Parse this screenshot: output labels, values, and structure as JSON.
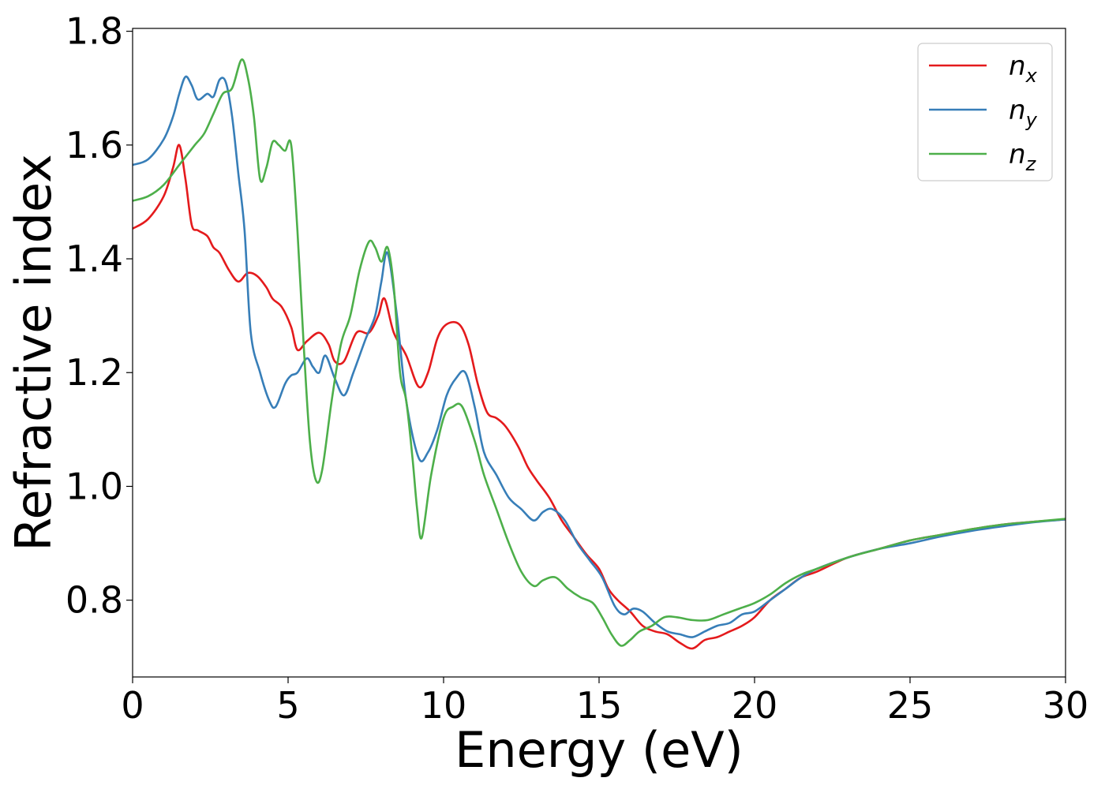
{
  "chart_data": {
    "type": "line",
    "xlabel": "Energy (eV)",
    "ylabel": "Refractive index",
    "xlim": [
      0,
      30
    ],
    "ylim": [
      0.665,
      1.805
    ],
    "xticks": [
      0,
      5,
      10,
      15,
      20,
      25,
      30
    ],
    "xtick_labels": [
      "0",
      "5",
      "10",
      "15",
      "20",
      "25",
      "30"
    ],
    "yticks": [
      0.8,
      1.0,
      1.2,
      1.4,
      1.6,
      1.8
    ],
    "ytick_labels": [
      "0.8",
      "1.0",
      "1.2",
      "1.4",
      "1.6",
      "1.8"
    ],
    "grid": false,
    "legend_position": "top-right",
    "series": [
      {
        "name": "n_x",
        "legend_base": "n",
        "legend_sub": "x",
        "color": "#e41a1c",
        "x": [
          0,
          0.5,
          1.0,
          1.3,
          1.5,
          1.7,
          1.9,
          2.1,
          2.4,
          2.6,
          2.8,
          3.1,
          3.4,
          3.7,
          4.0,
          4.3,
          4.5,
          4.8,
          5.1,
          5.3,
          5.6,
          6.0,
          6.3,
          6.5,
          6.8,
          7.2,
          7.6,
          7.9,
          8.1,
          8.4,
          8.8,
          9.2,
          9.5,
          9.8,
          10.1,
          10.5,
          10.8,
          11.1,
          11.4,
          11.7,
          12.0,
          12.4,
          12.7,
          13.0,
          13.4,
          13.8,
          14.2,
          14.6,
          15.0,
          15.3,
          15.6,
          16.0,
          16.4,
          16.8,
          17.2,
          17.6,
          18.0,
          18.4,
          18.8,
          19.2,
          19.6,
          20.0,
          20.5,
          21.0,
          21.5,
          22.0,
          23.0,
          24.0,
          25.0,
          26.0,
          27.0,
          28.0,
          29.0,
          30.0
        ],
        "y": [
          1.453,
          1.47,
          1.51,
          1.56,
          1.6,
          1.54,
          1.46,
          1.45,
          1.44,
          1.42,
          1.41,
          1.38,
          1.36,
          1.375,
          1.37,
          1.35,
          1.33,
          1.315,
          1.28,
          1.24,
          1.255,
          1.27,
          1.25,
          1.22,
          1.22,
          1.27,
          1.27,
          1.3,
          1.33,
          1.27,
          1.23,
          1.175,
          1.2,
          1.26,
          1.285,
          1.285,
          1.25,
          1.18,
          1.13,
          1.12,
          1.105,
          1.07,
          1.035,
          1.01,
          0.98,
          0.94,
          0.91,
          0.88,
          0.855,
          0.82,
          0.8,
          0.78,
          0.755,
          0.745,
          0.74,
          0.725,
          0.715,
          0.73,
          0.735,
          0.745,
          0.755,
          0.77,
          0.8,
          0.82,
          0.84,
          0.85,
          0.875,
          0.89,
          0.905,
          0.915,
          0.925,
          0.933,
          0.938,
          0.942
        ]
      },
      {
        "name": "n_y",
        "legend_base": "n",
        "legend_sub": "y",
        "color": "#377eb8",
        "x": [
          0,
          0.5,
          1.0,
          1.3,
          1.5,
          1.7,
          1.9,
          2.1,
          2.4,
          2.6,
          2.8,
          3.0,
          3.2,
          3.4,
          3.6,
          3.8,
          4.1,
          4.4,
          4.6,
          4.9,
          5.1,
          5.3,
          5.6,
          5.8,
          6.0,
          6.2,
          6.5,
          6.8,
          7.1,
          7.5,
          7.8,
          8.0,
          8.2,
          8.5,
          8.8,
          9.2,
          9.5,
          9.8,
          10.1,
          10.4,
          10.7,
          11.0,
          11.3,
          11.7,
          12.1,
          12.5,
          12.9,
          13.2,
          13.5,
          13.9,
          14.3,
          14.7,
          15.1,
          15.5,
          15.8,
          16.1,
          16.4,
          16.8,
          17.2,
          17.6,
          18.0,
          18.4,
          18.8,
          19.2,
          19.6,
          20.0,
          20.5,
          21.0,
          21.5,
          22.0,
          23.0,
          24.0,
          25.0,
          26.0,
          27.0,
          28.0,
          29.0,
          30.0
        ],
        "y": [
          1.565,
          1.575,
          1.61,
          1.65,
          1.69,
          1.72,
          1.705,
          1.68,
          1.69,
          1.685,
          1.715,
          1.71,
          1.65,
          1.55,
          1.45,
          1.27,
          1.2,
          1.15,
          1.14,
          1.18,
          1.195,
          1.2,
          1.225,
          1.21,
          1.2,
          1.23,
          1.19,
          1.16,
          1.2,
          1.26,
          1.3,
          1.36,
          1.41,
          1.3,
          1.15,
          1.05,
          1.06,
          1.1,
          1.16,
          1.19,
          1.2,
          1.14,
          1.06,
          1.02,
          0.98,
          0.96,
          0.94,
          0.955,
          0.96,
          0.94,
          0.9,
          0.87,
          0.84,
          0.79,
          0.775,
          0.785,
          0.78,
          0.76,
          0.745,
          0.74,
          0.735,
          0.745,
          0.755,
          0.76,
          0.775,
          0.78,
          0.8,
          0.82,
          0.84,
          0.855,
          0.875,
          0.89,
          0.9,
          0.912,
          0.922,
          0.93,
          0.937,
          0.942
        ]
      },
      {
        "name": "n_z",
        "legend_base": "n",
        "legend_sub": "z",
        "color": "#4daf4a",
        "x": [
          0,
          0.5,
          1.0,
          1.5,
          2.0,
          2.3,
          2.6,
          2.9,
          3.2,
          3.5,
          3.7,
          3.9,
          4.1,
          4.3,
          4.5,
          4.7,
          4.9,
          5.1,
          5.3,
          5.5,
          5.7,
          5.9,
          6.1,
          6.4,
          6.7,
          7.0,
          7.3,
          7.6,
          7.8,
          8.0,
          8.2,
          8.4,
          8.6,
          8.8,
          9.0,
          9.15,
          9.3,
          9.6,
          10.0,
          10.3,
          10.6,
          11.0,
          11.3,
          11.7,
          12.1,
          12.5,
          12.9,
          13.2,
          13.6,
          14.0,
          14.4,
          14.8,
          15.1,
          15.4,
          15.7,
          16.0,
          16.3,
          16.7,
          17.1,
          17.5,
          18.0,
          18.5,
          19.0,
          19.5,
          20.0,
          20.5,
          21.0,
          21.5,
          22.0,
          23.0,
          24.0,
          25.0,
          26.0,
          27.0,
          28.0,
          29.0,
          30.0
        ],
        "y": [
          1.502,
          1.51,
          1.53,
          1.565,
          1.6,
          1.62,
          1.655,
          1.69,
          1.7,
          1.75,
          1.72,
          1.65,
          1.54,
          1.56,
          1.605,
          1.6,
          1.59,
          1.6,
          1.45,
          1.25,
          1.08,
          1.01,
          1.03,
          1.15,
          1.25,
          1.3,
          1.38,
          1.43,
          1.42,
          1.395,
          1.42,
          1.35,
          1.2,
          1.15,
          1.05,
          0.96,
          0.91,
          1.02,
          1.12,
          1.14,
          1.14,
          1.08,
          1.02,
          0.96,
          0.9,
          0.85,
          0.825,
          0.835,
          0.84,
          0.82,
          0.805,
          0.795,
          0.77,
          0.74,
          0.72,
          0.73,
          0.745,
          0.755,
          0.77,
          0.77,
          0.765,
          0.765,
          0.775,
          0.785,
          0.795,
          0.81,
          0.83,
          0.845,
          0.855,
          0.875,
          0.89,
          0.905,
          0.915,
          0.925,
          0.933,
          0.938,
          0.943
        ]
      }
    ]
  }
}
